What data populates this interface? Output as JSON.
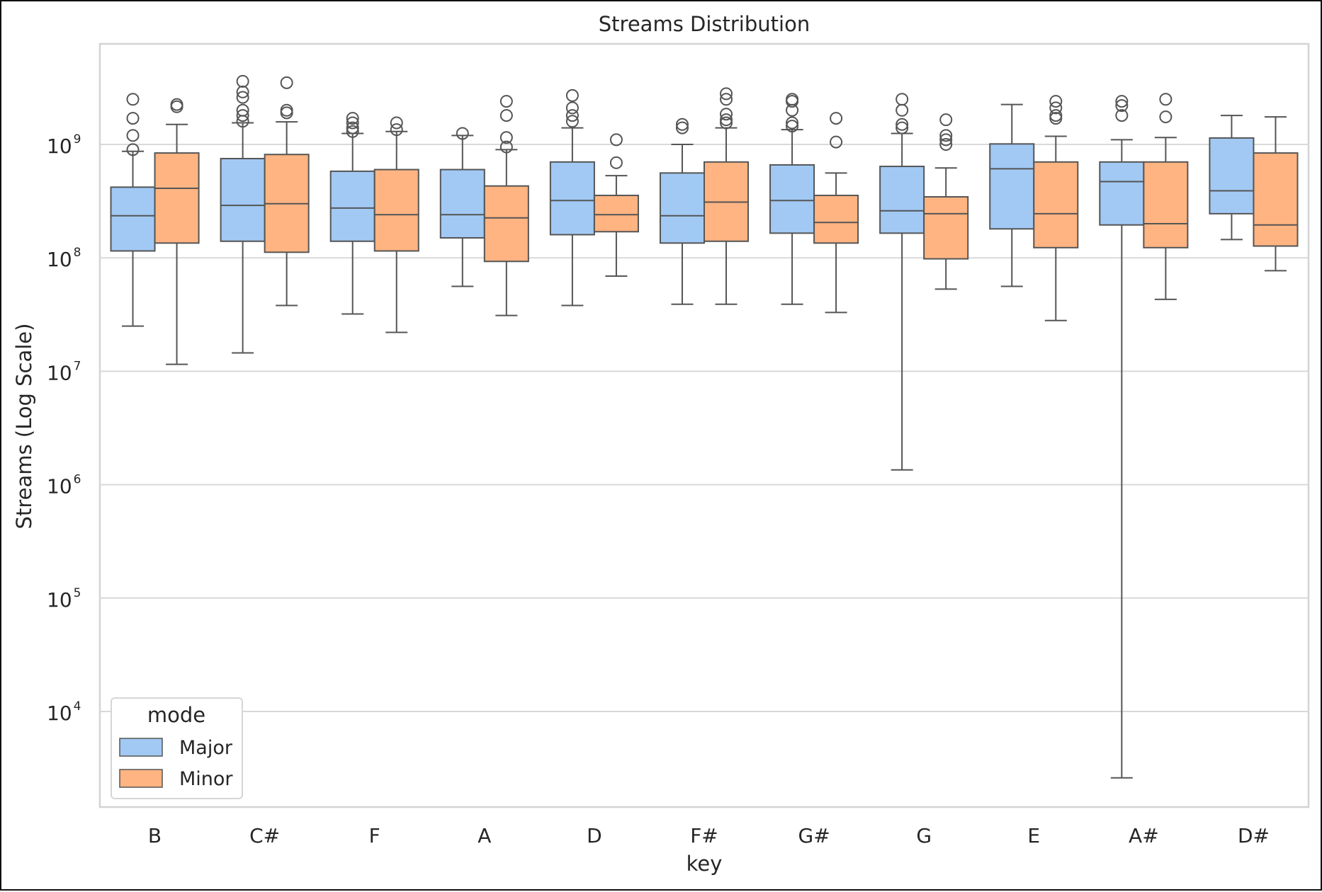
{
  "chart_data": {
    "type": "box",
    "title": "Streams Distribution",
    "xlabel": "key",
    "ylabel": "Streams (Log Scale)",
    "yscale": "log",
    "ylim": [
      1000,
      8000000000
    ],
    "yticks": [
      {
        "value": 10000,
        "base": "10",
        "exp": "4"
      },
      {
        "value": 100000,
        "base": "10",
        "exp": "5"
      },
      {
        "value": 1000000,
        "base": "10",
        "exp": "6"
      },
      {
        "value": 10000000,
        "base": "10",
        "exp": "7"
      },
      {
        "value": 100000000,
        "base": "10",
        "exp": "8"
      },
      {
        "value": 1000000000,
        "base": "10",
        "exp": "9"
      }
    ],
    "grid": true,
    "categories": [
      "B",
      "C#",
      "F",
      "A",
      "D",
      "F#",
      "G#",
      "G",
      "E",
      "A#",
      "D#"
    ],
    "legend": {
      "title": "mode",
      "position": "lower-left"
    },
    "series": [
      {
        "name": "Major",
        "color": "#a1c9f4",
        "boxes": [
          {
            "whislo": 25000000,
            "q1": 115000000,
            "med": 235000000,
            "q3": 420000000,
            "whishi": 870000000,
            "fliers": [
              900000000,
              1200000000,
              1700000000,
              2500000000
            ]
          },
          {
            "whislo": 14500000,
            "q1": 140000000,
            "med": 290000000,
            "q3": 750000000,
            "whishi": 1550000000,
            "fliers": [
              1600000000,
              1800000000,
              2000000000,
              2600000000,
              2900000000,
              3600000000
            ]
          },
          {
            "whislo": 32000000,
            "q1": 140000000,
            "med": 275000000,
            "q3": 580000000,
            "whishi": 1250000000,
            "fliers": [
              1300000000,
              1400000000,
              1550000000,
              1700000000
            ]
          },
          {
            "whislo": 56000000,
            "q1": 150000000,
            "med": 240000000,
            "q3": 600000000,
            "whishi": 1200000000,
            "fliers": [
              1250000000
            ]
          },
          {
            "whislo": 38000000,
            "q1": 160000000,
            "med": 320000000,
            "q3": 700000000,
            "whishi": 1400000000,
            "fliers": [
              1600000000,
              1800000000,
              2100000000,
              2700000000
            ]
          },
          {
            "whislo": 39000000,
            "q1": 135000000,
            "med": 235000000,
            "q3": 560000000,
            "whishi": 1000000000,
            "fliers": [
              1400000000,
              1500000000
            ]
          },
          {
            "whislo": 39000000,
            "q1": 165000000,
            "med": 320000000,
            "q3": 660000000,
            "whishi": 1350000000,
            "fliers": [
              1450000000,
              1550000000,
              2000000000,
              2400000000,
              2500000000
            ]
          },
          {
            "whislo": 1350000,
            "q1": 165000000,
            "med": 260000000,
            "q3": 640000000,
            "whishi": 1250000000,
            "fliers": [
              1400000000,
              1500000000,
              2000000000,
              2500000000
            ]
          },
          {
            "whislo": 56000000,
            "q1": 180000000,
            "med": 610000000,
            "q3": 1010000000,
            "whishi": 2250000000,
            "fliers": []
          },
          {
            "whislo": 2600,
            "q1": 195000000,
            "med": 470000000,
            "q3": 700000000,
            "whishi": 1100000000,
            "fliers": [
              1800000000,
              2200000000,
              2400000000
            ]
          },
          {
            "whislo": 145000000,
            "q1": 245000000,
            "med": 390000000,
            "q3": 1140000000,
            "whishi": 1800000000,
            "fliers": []
          }
        ]
      },
      {
        "name": "Minor",
        "color": "#ffb482",
        "boxes": [
          {
            "whislo": 11500000,
            "q1": 135000000,
            "med": 410000000,
            "q3": 840000000,
            "whishi": 1500000000,
            "fliers": [
              2150000000,
              2250000000
            ]
          },
          {
            "whislo": 38000000,
            "q1": 112000000,
            "med": 300000000,
            "q3": 815000000,
            "whishi": 1580000000,
            "fliers": [
              1900000000,
              2000000000,
              3500000000
            ]
          },
          {
            "whislo": 22000000,
            "q1": 115000000,
            "med": 240000000,
            "q3": 600000000,
            "whishi": 1300000000,
            "fliers": [
              1350000000,
              1550000000
            ]
          },
          {
            "whislo": 31000000,
            "q1": 93000000,
            "med": 225000000,
            "q3": 430000000,
            "whishi": 900000000,
            "fliers": [
              950000000,
              1150000000,
              1800000000,
              2400000000
            ]
          },
          {
            "whislo": 69000000,
            "q1": 170000000,
            "med": 240000000,
            "q3": 355000000,
            "whishi": 530000000,
            "fliers": [
              690000000,
              1100000000
            ]
          },
          {
            "whislo": 39000000,
            "q1": 140000000,
            "med": 310000000,
            "q3": 700000000,
            "whishi": 1400000000,
            "fliers": [
              1550000000,
              1650000000,
              1850000000,
              2500000000,
              2800000000
            ]
          },
          {
            "whislo": 33000000,
            "q1": 135000000,
            "med": 205000000,
            "q3": 355000000,
            "whishi": 560000000,
            "fliers": [
              1050000000,
              1700000000
            ]
          },
          {
            "whislo": 53000000,
            "q1": 98000000,
            "med": 245000000,
            "q3": 345000000,
            "whishi": 620000000,
            "fliers": [
              1000000000,
              1100000000,
              1200000000,
              1650000000
            ]
          },
          {
            "whislo": 28000000,
            "q1": 123000000,
            "med": 245000000,
            "q3": 700000000,
            "whishi": 1180000000,
            "fliers": [
              1700000000,
              1800000000,
              2100000000,
              2400000000
            ]
          },
          {
            "whislo": 43000000,
            "q1": 123000000,
            "med": 200000000,
            "q3": 700000000,
            "whishi": 1150000000,
            "fliers": [
              1750000000,
              2500000000
            ]
          },
          {
            "whislo": 77000000,
            "q1": 127000000,
            "med": 195000000,
            "q3": 840000000,
            "whishi": 1750000000,
            "fliers": []
          }
        ]
      }
    ]
  }
}
